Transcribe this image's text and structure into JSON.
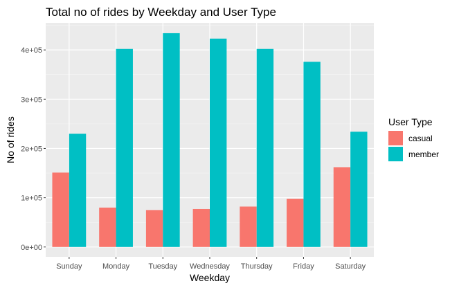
{
  "chart_data": {
    "type": "bar",
    "title": "Total no of rides by Weekday and User Type",
    "xlabel": "Weekday",
    "ylabel": "No of rides",
    "categories": [
      "Sunday",
      "Monday",
      "Tuesday",
      "Wednesday",
      "Thursday",
      "Friday",
      "Saturday"
    ],
    "series": [
      {
        "name": "casual",
        "color": "#F8766D",
        "values": [
          151000,
          80000,
          75000,
          77000,
          82000,
          98000,
          162000
        ]
      },
      {
        "name": "member",
        "color": "#00BFC4",
        "values": [
          230000,
          402000,
          434000,
          423000,
          402000,
          376000,
          234000
        ]
      }
    ],
    "ylim": [
      -20000,
      455000
    ],
    "yticks": [
      0,
      100000,
      200000,
      300000,
      400000
    ],
    "ytick_labels": [
      "0e+00",
      "1e+05",
      "2e+05",
      "3e+05",
      "4e+05"
    ],
    "grid": true,
    "legend": {
      "title": "User Type",
      "position": "right"
    }
  }
}
